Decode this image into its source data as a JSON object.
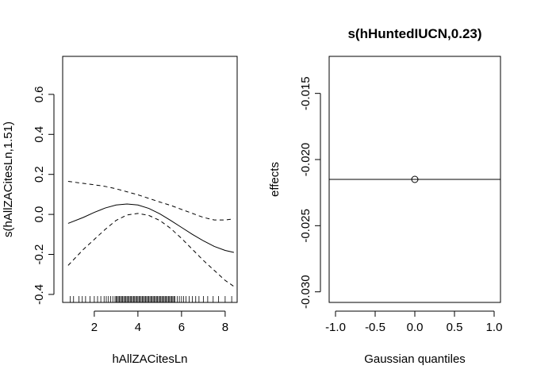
{
  "chart_data": [
    {
      "type": "line",
      "title": "",
      "xlabel": "hAllZACitesLn",
      "ylabel": "s(hAllZACitesLn,1.51)",
      "xlim": [
        0.55,
        8.55
      ],
      "ylim": [
        -0.44,
        0.79
      ],
      "xticks": [
        2,
        4,
        6,
        8
      ],
      "yticks": [
        -0.4,
        -0.2,
        0.0,
        0.2,
        0.4,
        0.6
      ],
      "xtick_labels": [
        "2",
        "4",
        "6",
        "8"
      ],
      "ytick_labels": [
        "-0.4",
        "-0.2",
        "0.0",
        "0.2",
        "0.4",
        "0.6"
      ],
      "grid": false,
      "series": [
        {
          "style": "solid",
          "x": [
            0.8,
            1.5,
            2.0,
            2.5,
            3.0,
            3.5,
            4.0,
            4.5,
            5.0,
            5.5,
            6.0,
            6.5,
            7.0,
            7.5,
            8.0,
            8.4
          ],
          "y": [
            -0.045,
            -0.015,
            0.01,
            0.032,
            0.047,
            0.052,
            0.047,
            0.03,
            0.003,
            -0.03,
            -0.065,
            -0.1,
            -0.132,
            -0.16,
            -0.18,
            -0.19
          ]
        },
        {
          "style": "dashed",
          "x": [
            0.8,
            1.5,
            2.0,
            2.5,
            3.0,
            3.5,
            4.0,
            4.5,
            5.0,
            5.5,
            6.0,
            6.5,
            7.0,
            7.5,
            8.0,
            8.4
          ],
          "y": [
            0.165,
            0.155,
            0.148,
            0.14,
            0.128,
            0.113,
            0.098,
            0.08,
            0.062,
            0.045,
            0.025,
            0.005,
            -0.015,
            -0.028,
            -0.028,
            -0.022
          ]
        },
        {
          "style": "dashed",
          "x": [
            0.8,
            1.5,
            2.0,
            2.5,
            3.0,
            3.5,
            4.0,
            4.5,
            5.0,
            5.5,
            6.0,
            6.5,
            7.0,
            7.5,
            8.0,
            8.4
          ],
          "y": [
            -0.255,
            -0.175,
            -0.125,
            -0.075,
            -0.03,
            -0.003,
            0.005,
            -0.005,
            -0.03,
            -0.07,
            -0.12,
            -0.175,
            -0.23,
            -0.28,
            -0.33,
            -0.36
          ]
        }
      ],
      "rug": [
        0.9,
        1.05,
        1.3,
        1.45,
        1.6,
        1.8,
        2.0,
        2.15,
        2.3,
        2.45,
        2.55,
        2.65,
        2.75,
        2.85,
        2.95,
        3.0,
        3.05,
        3.1,
        3.15,
        3.2,
        3.25,
        3.3,
        3.35,
        3.4,
        3.45,
        3.5,
        3.55,
        3.6,
        3.65,
        3.7,
        3.75,
        3.8,
        3.85,
        3.9,
        3.95,
        4.0,
        4.05,
        4.1,
        4.15,
        4.2,
        4.25,
        4.3,
        4.35,
        4.4,
        4.45,
        4.5,
        4.55,
        4.6,
        4.65,
        4.7,
        4.75,
        4.8,
        4.85,
        4.9,
        4.95,
        5.0,
        5.05,
        5.1,
        5.15,
        5.2,
        5.25,
        5.3,
        5.35,
        5.4,
        5.45,
        5.5,
        5.55,
        5.6,
        5.65,
        5.7,
        5.8,
        5.9,
        6.0,
        6.1,
        6.2,
        6.35,
        6.5,
        6.65,
        6.8,
        7.0,
        7.2,
        7.45,
        7.7,
        8.0,
        8.3
      ]
    },
    {
      "type": "line",
      "title": "s(hHuntedIUCN,0.23)",
      "xlabel": "Gaussian quantiles",
      "ylabel": "effects",
      "xlim": [
        -1.08,
        1.08
      ],
      "ylim": [
        -0.0308,
        -0.0122
      ],
      "xticks": [
        -1.0,
        -0.5,
        0.0,
        0.5,
        1.0
      ],
      "yticks": [
        -0.03,
        -0.025,
        -0.02,
        -0.015
      ],
      "xtick_labels": [
        "-1.0",
        "-0.5",
        "0.0",
        "0.5",
        "1.0"
      ],
      "ytick_labels": [
        "-0.030",
        "-0.025",
        "-0.020",
        "-0.015"
      ],
      "grid": false,
      "reference_line_y": -0.0215,
      "points": [
        {
          "x": 0.0,
          "y": -0.0215
        }
      ]
    }
  ]
}
